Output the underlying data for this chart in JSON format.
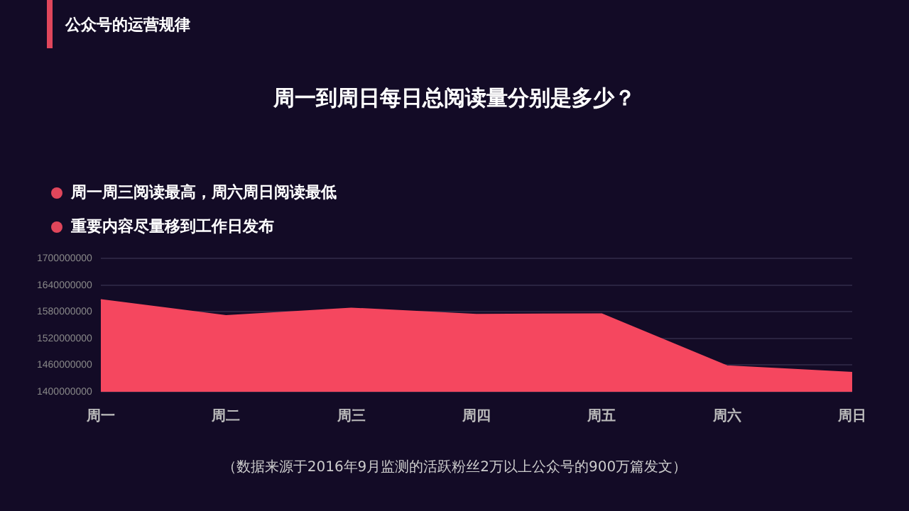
{
  "chart_data": {
    "type": "area",
    "title": "周一到周日每日总阅读量分别是多少？",
    "categories": [
      "周一",
      "周二",
      "周三",
      "周四",
      "周五",
      "周六",
      "周日"
    ],
    "series": [
      {
        "color": "#f5475f",
        "values": [
          1607000000,
          1571000000,
          1588000000,
          1574000000,
          1575000000,
          1458000000,
          1443000000
        ]
      }
    ],
    "ylim": [
      1400000000,
      1700000000
    ],
    "yticks": [
      1400000000,
      1460000000,
      1520000000,
      1580000000,
      1640000000,
      1700000000
    ],
    "grid": "y",
    "legend": false,
    "annotations": [
      "公众号的运营规律",
      "周一周三阅读最高，周六周日阅读最低",
      "重要内容尽量移到工作日发布",
      "（数据来源于2016年9月监测的活跃粉丝2万以上公众号的900万篇发文）"
    ]
  }
}
